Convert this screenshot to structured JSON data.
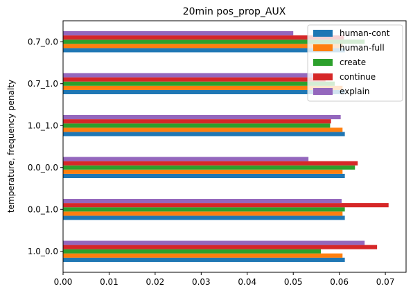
{
  "chart_data": {
    "type": "bar",
    "orientation": "horizontal",
    "title": "20min pos_prop_AUX",
    "xlabel": "",
    "ylabel": "temperature, frequency penalty",
    "xlim": [
      0,
      0.0745
    ],
    "xticks": [
      "0.00",
      "0.01",
      "0.02",
      "0.03",
      "0.04",
      "0.05",
      "0.06",
      "0.07"
    ],
    "xtick_values": [
      0,
      0.01,
      0.02,
      0.03,
      0.04,
      0.05,
      0.06,
      0.07
    ],
    "grid": false,
    "legend_position": "top-right",
    "categories": [
      "1.0_0.0",
      "0.0_1.0",
      "0.0_0.0",
      "1.0_1.0",
      "0.7_1.0",
      "0.7_0.0"
    ],
    "series": [
      {
        "name": "human-cont",
        "color": "#1f77b4",
        "values": [
          0.0612,
          0.0612,
          0.0612,
          0.0612,
          0.0612,
          0.0612
        ]
      },
      {
        "name": "human-full",
        "color": "#ff7f0e",
        "values": [
          0.0607,
          0.0607,
          0.0607,
          0.0607,
          0.0607,
          0.0607
        ]
      },
      {
        "name": "create",
        "color": "#2ca02c",
        "values": [
          0.056,
          0.0612,
          0.0634,
          0.058,
          0.059,
          0.0655
        ]
      },
      {
        "name": "continue",
        "color": "#d62728",
        "values": [
          0.0682,
          0.0707,
          0.064,
          0.0582,
          0.057,
          0.061
        ]
      },
      {
        "name": "explain",
        "color": "#9467bd",
        "values": [
          0.0655,
          0.0605,
          0.0533,
          0.0603,
          0.0575,
          0.05
        ]
      }
    ]
  }
}
